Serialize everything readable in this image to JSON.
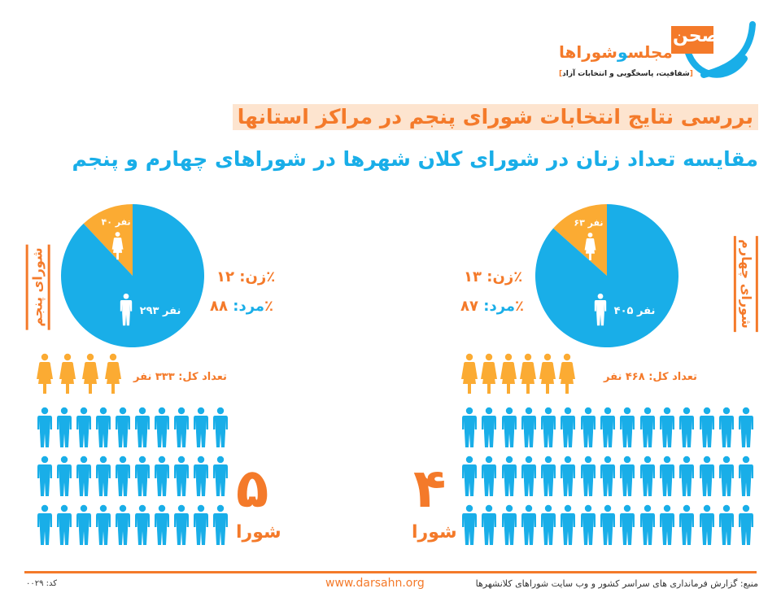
{
  "logo": {
    "word": "صحن",
    "subtitle_a": "مجلس",
    "subtitle_and": "و",
    "subtitle_b": "شوراها",
    "tagline": "شفافیت، پاسخگویی و انتخابات آزاد"
  },
  "header": {
    "title": "بررسی نتایج انتخابات شورای پنجم در مراکز استانها",
    "subtitle": "مقایسه تعداد زنان در شورای کلان شهرها در شوراهای چهارم و پنجم"
  },
  "colors": {
    "men": "#19aee8",
    "women": "#fbab33",
    "accent": "#f47a2a"
  },
  "icons": {
    "man": "man-figure-icon",
    "woman": "woman-figure-icon"
  },
  "chart_data": [
    {
      "type": "pie",
      "side_label": "شورای پنجم",
      "categories": [
        "زن",
        "مرد"
      ],
      "values": [
        40,
        293
      ],
      "slice_labels": [
        "۴۰ نفر",
        "۲۹۳ نفر"
      ],
      "women_label": "زن:",
      "women_percent": "۱۲٪",
      "men_label": "مرد:",
      "men_percent": "۸۸٪",
      "total_text": "تعداد کل: ۳۳۳ نفر",
      "icon_women": 4,
      "icon_men": 30,
      "council_number": "۵",
      "council_word": "شورا"
    },
    {
      "type": "pie",
      "side_label": "شورای چهارم",
      "categories": [
        "زن",
        "مرد"
      ],
      "values": [
        63,
        405
      ],
      "slice_labels": [
        "۶۳ نفر",
        "۴۰۵ نفر"
      ],
      "women_label": "زن:",
      "women_percent": "۱۳٪",
      "men_label": "مرد:",
      "men_percent": "۸۷٪",
      "total_text": "تعداد کل: ۴۶۸ نفر",
      "icon_women": 6,
      "icon_men": 45,
      "council_number": "۴",
      "council_word": "شورا"
    }
  ],
  "footer": {
    "source": "منبع: گزارش فرمانداری های سراسر کشور و وب سایت شوراهای کلانشهرها",
    "url": "www.darsahn.org",
    "code": "کد: ۰۰۲۹"
  }
}
